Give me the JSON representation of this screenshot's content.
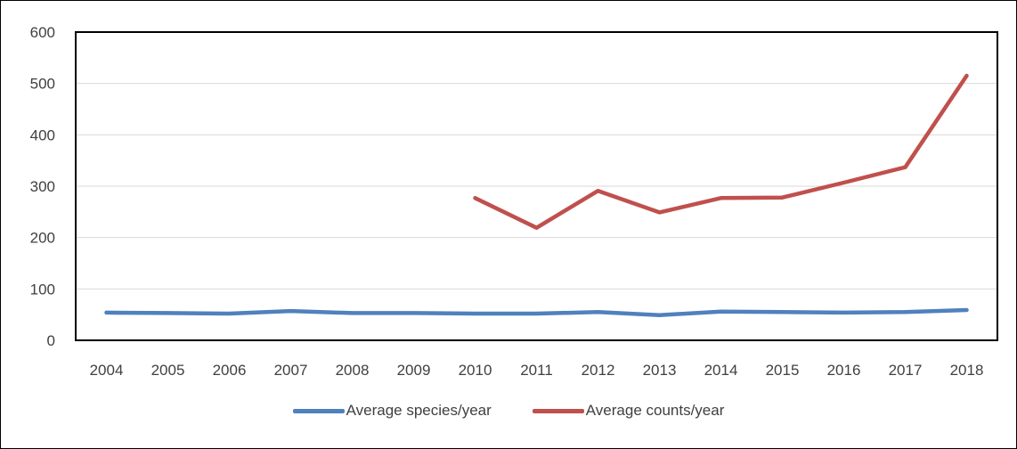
{
  "chart_data": {
    "type": "line",
    "title": "",
    "xlabel": "",
    "ylabel": "",
    "categories": [
      "2004",
      "2005",
      "2006",
      "2007",
      "2008",
      "2009",
      "2010",
      "2011",
      "2012",
      "2013",
      "2014",
      "2015",
      "2016",
      "2017",
      "2018"
    ],
    "ylim": [
      0,
      600
    ],
    "yticks": [
      0,
      100,
      200,
      300,
      400,
      500,
      600
    ],
    "grid": true,
    "legend_position": "bottom",
    "series": [
      {
        "name": "Average species/year",
        "color": "#4F81BD",
        "values": [
          54,
          53,
          52,
          57,
          53,
          53,
          52,
          52,
          55,
          49,
          56,
          55,
          54,
          55,
          59
        ]
      },
      {
        "name": "Average counts/year",
        "color": "#C0504D",
        "values": [
          null,
          null,
          null,
          null,
          null,
          null,
          277,
          219,
          291,
          249,
          277,
          278,
          307,
          337,
          515
        ]
      }
    ]
  }
}
